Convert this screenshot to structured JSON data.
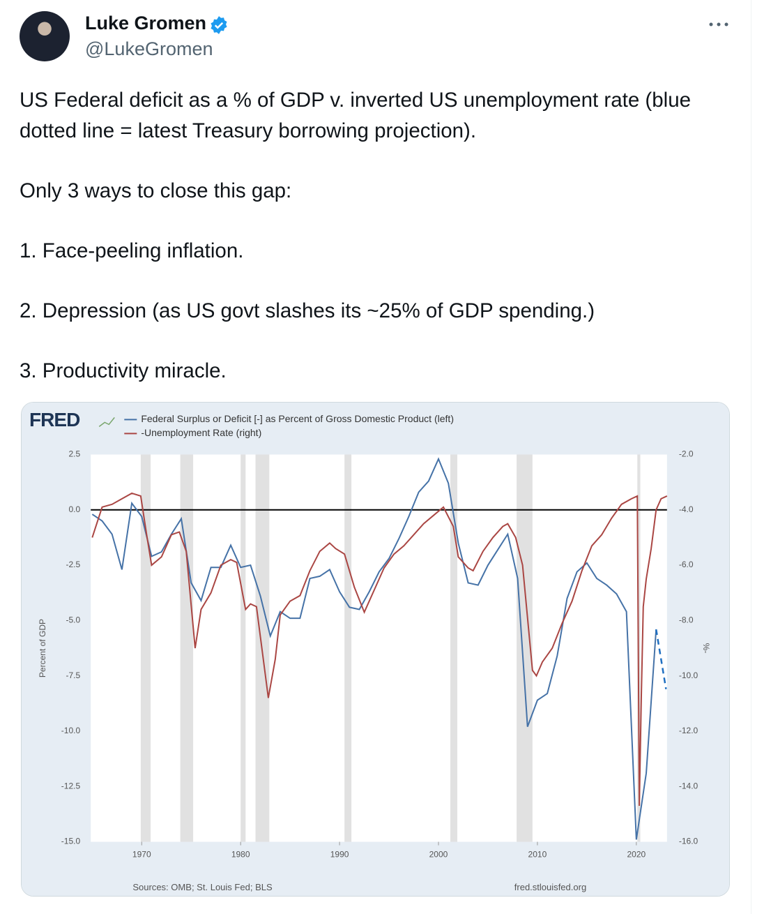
{
  "tweet": {
    "name": "Luke Gromen",
    "handle": "@LukeGromen",
    "paragraphs": [
      "US Federal deficit as a % of GDP v. inverted US unemployment rate (blue dotted line = latest Treasury borrowing projection).",
      "Only 3 ways to close this gap:",
      "1. Face-peeling inflation.",
      "2. Depression (as US govt slashes its ~25% of GDP spending.)",
      "3. Productivity miracle."
    ]
  },
  "chart_data": {
    "type": "line",
    "logo": "FRED",
    "ylabel": "Percent of GDP",
    "y2label": "%-",
    "source": "Sources: OMB; St. Louis Fed; BLS",
    "site": "fred.stlouisfed.org",
    "legend": "top-left",
    "reference_line": 0,
    "xlim": [
      1964.85,
      2023.1
    ],
    "xticks": [
      1970,
      1980,
      1990,
      2000,
      2010,
      2020
    ],
    "ylim": [
      -15,
      2.5
    ],
    "yticks": [
      2.5,
      {
        "value": 0,
        "label": "0.0"
      },
      -2.5,
      {
        "value": -5,
        "label": "-5.0"
      },
      -7.5,
      {
        "value": -10,
        "label": "-10.0"
      },
      -12.5,
      {
        "value": -15,
        "label": "-15.0"
      }
    ],
    "y2lim": [
      -16,
      -2
    ],
    "y2ticks": [
      {
        "value": -2,
        "label": "-2.0"
      },
      {
        "value": -4,
        "label": "-4.0"
      },
      {
        "value": -6,
        "label": "-6.0"
      },
      {
        "value": -8,
        "label": "-8.0"
      },
      {
        "value": -10,
        "label": "-10.0"
      },
      {
        "value": -12,
        "label": "-12.0"
      },
      {
        "value": -14,
        "label": "-14.0"
      },
      {
        "value": -16,
        "label": "-16.0"
      }
    ],
    "recessions": [
      [
        1969.9,
        1970.9
      ],
      [
        1973.9,
        1975.2
      ],
      [
        1980.0,
        1980.5
      ],
      [
        1981.5,
        1982.9
      ],
      [
        1990.5,
        1991.2
      ],
      [
        2001.2,
        2001.9
      ],
      [
        2007.9,
        2009.5
      ],
      [
        2020.1,
        2020.4
      ]
    ],
    "series": [
      {
        "name": "Federal Surplus or Deficit [-] as Percent of Gross Domestic Product (left)",
        "color": "#4572a7",
        "axis": "y",
        "x": [
          1965,
          1966,
          1967,
          1968,
          1969,
          1970,
          1971,
          1972,
          1973,
          1974,
          1975,
          1976,
          1977,
          1978,
          1979,
          1980,
          1981,
          1982,
          1983,
          1984,
          1985,
          1986,
          1987,
          1988,
          1989,
          1990,
          1991,
          1992,
          1993,
          1994,
          1995,
          1996,
          1997,
          1998,
          1999,
          2000,
          2001,
          2002,
          2003,
          2004,
          2005,
          2006,
          2007,
          2008,
          2009,
          2010,
          2011,
          2012,
          2013,
          2014,
          2015,
          2016,
          2017,
          2018,
          2019,
          2020,
          2021,
          2022
        ],
        "values": [
          -0.2,
          -0.5,
          -1.1,
          -2.7,
          0.3,
          -0.3,
          -2.1,
          -1.9,
          -1.1,
          -0.4,
          -3.3,
          -4.1,
          -2.6,
          -2.6,
          -1.6,
          -2.6,
          -2.5,
          -3.9,
          -5.7,
          -4.6,
          -4.9,
          -4.9,
          -3.1,
          -3.0,
          -2.7,
          -3.7,
          -4.4,
          -4.5,
          -3.7,
          -2.8,
          -2.2,
          -1.3,
          -0.3,
          0.8,
          1.3,
          2.3,
          1.2,
          -1.5,
          -3.3,
          -3.4,
          -2.5,
          -1.8,
          -1.1,
          -3.1,
          -9.8,
          -8.6,
          -8.3,
          -6.6,
          -4.0,
          -2.8,
          -2.4,
          -3.1,
          -3.4,
          -3.8,
          -4.6,
          -14.9,
          -11.9,
          -5.4
        ]
      },
      {
        "name": "-Unemployment Rate (right)",
        "color": "#aa4643",
        "axis": "y2",
        "x": [
          1965.0,
          1966.0,
          1967.0,
          1968.0,
          1969.0,
          1969.9,
          1970.5,
          1971.0,
          1972.0,
          1973.0,
          1973.8,
          1974.5,
          1975.4,
          1976.0,
          1977.0,
          1978.0,
          1979.0,
          1979.6,
          1980.5,
          1981.0,
          1981.6,
          1982.8,
          1983.5,
          1984.0,
          1985.0,
          1986.0,
          1987.0,
          1988.0,
          1989.0,
          1989.6,
          1990.5,
          1991.5,
          1992.5,
          1993.5,
          1994.5,
          1995.5,
          1996.5,
          1997.5,
          1998.5,
          1999.5,
          2000.5,
          2001.5,
          2002.0,
          2003.0,
          2003.5,
          2004.5,
          2005.5,
          2006.5,
          2007.0,
          2007.8,
          2008.5,
          2009.5,
          2009.9,
          2010.5,
          2011.5,
          2012.5,
          2013.5,
          2014.5,
          2015.5,
          2016.5,
          2017.5,
          2018.5,
          2019.5,
          2020.1,
          2020.3,
          2020.5,
          2020.7,
          2021.0,
          2021.5,
          2022.0,
          2022.5,
          2023.1
        ],
        "values": [
          -5.0,
          -3.9,
          -3.8,
          -3.6,
          -3.4,
          -3.5,
          -4.9,
          -6.0,
          -5.7,
          -4.9,
          -4.8,
          -5.5,
          -9.0,
          -7.6,
          -7.0,
          -6.0,
          -5.8,
          -5.9,
          -7.6,
          -7.4,
          -7.5,
          -10.8,
          -9.4,
          -7.8,
          -7.3,
          -7.1,
          -6.2,
          -5.5,
          -5.2,
          -5.4,
          -5.6,
          -6.8,
          -7.7,
          -6.9,
          -6.1,
          -5.6,
          -5.3,
          -4.9,
          -4.5,
          -4.2,
          -3.9,
          -4.6,
          -5.7,
          -6.1,
          -6.2,
          -5.5,
          -5.0,
          -4.6,
          -4.5,
          -5.0,
          -6.0,
          -9.8,
          -10.0,
          -9.5,
          -9.0,
          -8.1,
          -7.3,
          -6.2,
          -5.3,
          -4.9,
          -4.3,
          -3.8,
          -3.6,
          -3.5,
          -14.7,
          -10.8,
          -7.5,
          -6.5,
          -5.4,
          -4.0,
          -3.6,
          -3.5
        ]
      }
    ],
    "projection": {
      "color": "#1f6fc1",
      "axis": "y",
      "dash": true,
      "x": [
        2022,
        2023
      ],
      "values": [
        -5.4,
        -8.1
      ]
    }
  }
}
